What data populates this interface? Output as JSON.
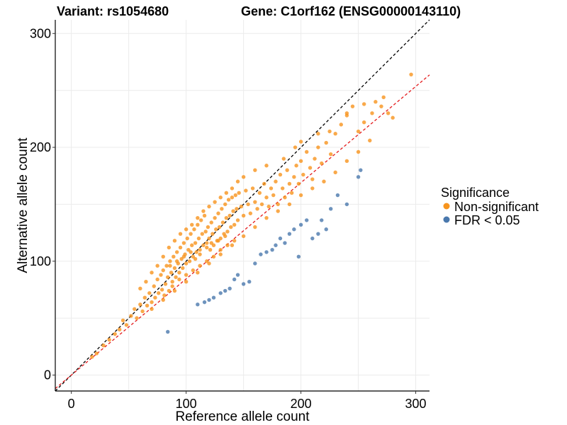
{
  "chart_data": {
    "type": "scatter",
    "title_left": "Variant: rs1054680",
    "title_right": "Gene: C1orf162 (ENSG00000143110)",
    "xlabel": "Reference allele count",
    "ylabel": "Alternative allele count",
    "xlim": [
      -14,
      312
    ],
    "ylim": [
      -14,
      312
    ],
    "xticks": [
      0,
      100,
      200,
      300
    ],
    "yticks": [
      0,
      100,
      200,
      300
    ],
    "grid": true,
    "legend": {
      "title": "Significance",
      "position": "right",
      "items": [
        {
          "label": "Non-significant",
          "color": "#f7941d"
        },
        {
          "label": "FDR < 0.05",
          "color": "#4a78ad"
        }
      ]
    },
    "reference_lines": [
      {
        "kind": "identity",
        "slope": 1,
        "intercept": 0,
        "color": "#000000",
        "dash": true
      },
      {
        "kind": "fit",
        "slope": 0.845,
        "intercept": 0,
        "color": "#e41a1c",
        "dash": true
      }
    ],
    "series": [
      {
        "name": "Non-significant",
        "color": "#f7941d",
        "points": [
          [
            18,
            16
          ],
          [
            22,
            19
          ],
          [
            28,
            26
          ],
          [
            33,
            31
          ],
          [
            38,
            36
          ],
          [
            42,
            40
          ],
          [
            45,
            48
          ],
          [
            48,
            44
          ],
          [
            52,
            52
          ],
          [
            55,
            58
          ],
          [
            57,
            50
          ],
          [
            60,
            62
          ],
          [
            62,
            56
          ],
          [
            64,
            68
          ],
          [
            66,
            61
          ],
          [
            68,
            72
          ],
          [
            70,
            64
          ],
          [
            72,
            78
          ],
          [
            73,
            68
          ],
          [
            75,
            84
          ],
          [
            76,
            72
          ],
          [
            78,
            88
          ],
          [
            79,
            75
          ],
          [
            80,
            92
          ],
          [
            81,
            70
          ],
          [
            82,
            80
          ],
          [
            83,
            96
          ],
          [
            84,
            86
          ],
          [
            85,
            74
          ],
          [
            86,
            100
          ],
          [
            87,
            90
          ],
          [
            88,
            82
          ],
          [
            89,
            104
          ],
          [
            90,
            94
          ],
          [
            91,
            86
          ],
          [
            92,
            108
          ],
          [
            93,
            98
          ],
          [
            94,
            90
          ],
          [
            95,
            112
          ],
          [
            96,
            102
          ],
          [
            97,
            94
          ],
          [
            98,
            116
          ],
          [
            99,
            106
          ],
          [
            100,
            98
          ],
          [
            101,
            120
          ],
          [
            102,
            110
          ],
          [
            103,
            100
          ],
          [
            104,
            124
          ],
          [
            105,
            114
          ],
          [
            106,
            104
          ],
          [
            107,
            128
          ],
          [
            108,
            116
          ],
          [
            109,
            108
          ],
          [
            110,
            132
          ],
          [
            111,
            120
          ],
          [
            112,
            110
          ],
          [
            113,
            136
          ],
          [
            114,
            124
          ],
          [
            115,
            114
          ],
          [
            116,
            140
          ],
          [
            117,
            126
          ],
          [
            118,
            116
          ],
          [
            119,
            130
          ],
          [
            120,
            120
          ],
          [
            121,
            110
          ],
          [
            122,
            134
          ],
          [
            123,
            124
          ],
          [
            124,
            114
          ],
          [
            125,
            138
          ],
          [
            126,
            128
          ],
          [
            127,
            118
          ],
          [
            128,
            142
          ],
          [
            129,
            130
          ],
          [
            130,
            120
          ],
          [
            131,
            146
          ],
          [
            132,
            134
          ],
          [
            133,
            124
          ],
          [
            134,
            150
          ],
          [
            135,
            138
          ],
          [
            136,
            126
          ],
          [
            137,
            154
          ],
          [
            138,
            140
          ],
          [
            139,
            130
          ],
          [
            140,
            156
          ],
          [
            141,
            144
          ],
          [
            142,
            132
          ],
          [
            143,
            158
          ],
          [
            144,
            146
          ],
          [
            145,
            136
          ],
          [
            146,
            160
          ],
          [
            148,
            148
          ],
          [
            150,
            140
          ],
          [
            152,
            162
          ],
          [
            154,
            150
          ],
          [
            156,
            142
          ],
          [
            158,
            164
          ],
          [
            160,
            152
          ],
          [
            162,
            146
          ],
          [
            164,
            160
          ],
          [
            166,
            150
          ],
          [
            168,
            168
          ],
          [
            170,
            156
          ],
          [
            172,
            148
          ],
          [
            174,
            164
          ],
          [
            176,
            158
          ],
          [
            178,
            170
          ],
          [
            180,
            150
          ],
          [
            182,
            176
          ],
          [
            184,
            164
          ],
          [
            186,
            156
          ],
          [
            188,
            180
          ],
          [
            190,
            168
          ],
          [
            192,
            160
          ],
          [
            194,
            174
          ],
          [
            196,
            184
          ],
          [
            198,
            168
          ],
          [
            200,
            188
          ],
          [
            202,
            176
          ],
          [
            205,
            196
          ],
          [
            208,
            182
          ],
          [
            210,
            172
          ],
          [
            212,
            190
          ],
          [
            215,
            200
          ],
          [
            218,
            186
          ],
          [
            222,
            204
          ],
          [
            226,
            194
          ],
          [
            230,
            212
          ],
          [
            235,
            220
          ],
          [
            240,
            228
          ],
          [
            245,
            236
          ],
          [
            250,
            214
          ],
          [
            255,
            238
          ],
          [
            262,
            230
          ],
          [
            270,
            236
          ],
          [
            276,
            230
          ],
          [
            280,
            226
          ],
          [
            296,
            264
          ],
          [
            60,
            76
          ],
          [
            65,
            82
          ],
          [
            70,
            90
          ],
          [
            75,
            96
          ],
          [
            80,
            104
          ],
          [
            85,
            112
          ],
          [
            90,
            118
          ],
          [
            95,
            124
          ],
          [
            100,
            128
          ],
          [
            105,
            132
          ],
          [
            110,
            138
          ],
          [
            115,
            144
          ],
          [
            120,
            148
          ],
          [
            125,
            152
          ],
          [
            130,
            156
          ],
          [
            135,
            160
          ],
          [
            140,
            164
          ],
          [
            145,
            170
          ],
          [
            150,
            174
          ],
          [
            160,
            180
          ],
          [
            170,
            184
          ],
          [
            185,
            190
          ],
          [
            195,
            200
          ],
          [
            200,
            205
          ],
          [
            215,
            212
          ],
          [
            225,
            214
          ],
          [
            240,
            230
          ],
          [
            255,
            222
          ],
          [
            265,
            240
          ],
          [
            272,
            244
          ],
          [
            70,
            58
          ],
          [
            80,
            66
          ],
          [
            90,
            74
          ],
          [
            100,
            82
          ],
          [
            110,
            90
          ],
          [
            120,
            98
          ],
          [
            130,
            106
          ],
          [
            140,
            114
          ],
          [
            150,
            122
          ],
          [
            160,
            130
          ],
          [
            170,
            138
          ],
          [
            180,
            144
          ],
          [
            190,
            150
          ],
          [
            200,
            158
          ],
          [
            210,
            164
          ],
          [
            220,
            170
          ],
          [
            230,
            178
          ],
          [
            240,
            188
          ],
          [
            250,
            196
          ],
          [
            260,
            206
          ],
          [
            86,
            96
          ],
          [
            92,
            100
          ],
          [
            98,
            104
          ],
          [
            104,
            108
          ],
          [
            108,
            102
          ],
          [
            112,
            106
          ],
          [
            118,
            112
          ],
          [
            122,
            116
          ],
          [
            128,
            118
          ],
          [
            134,
            122
          ],
          [
            88,
            78
          ],
          [
            94,
            84
          ],
          [
            100,
            88
          ],
          [
            106,
            92
          ],
          [
            112,
            96
          ],
          [
            118,
            100
          ],
          [
            124,
            104
          ],
          [
            130,
            110
          ],
          [
            136,
            114
          ],
          [
            142,
            118
          ]
        ]
      },
      {
        "name": "FDR < 0.05",
        "color": "#4a78ad",
        "points": [
          [
            84,
            38
          ],
          [
            110,
            62
          ],
          [
            116,
            64
          ],
          [
            120,
            66
          ],
          [
            124,
            68
          ],
          [
            130,
            72
          ],
          [
            134,
            74
          ],
          [
            138,
            76
          ],
          [
            142,
            84
          ],
          [
            145,
            88
          ],
          [
            150,
            80
          ],
          [
            155,
            82
          ],
          [
            160,
            98
          ],
          [
            165,
            106
          ],
          [
            170,
            108
          ],
          [
            175,
            110
          ],
          [
            178,
            114
          ],
          [
            182,
            120
          ],
          [
            186,
            116
          ],
          [
            190,
            124
          ],
          [
            194,
            128
          ],
          [
            198,
            104
          ],
          [
            200,
            132
          ],
          [
            205,
            136
          ],
          [
            210,
            120
          ],
          [
            215,
            124
          ],
          [
            218,
            136
          ],
          [
            222,
            128
          ],
          [
            226,
            146
          ],
          [
            232,
            158
          ],
          [
            240,
            150
          ],
          [
            250,
            174
          ],
          [
            252,
            180
          ]
        ]
      }
    ]
  }
}
